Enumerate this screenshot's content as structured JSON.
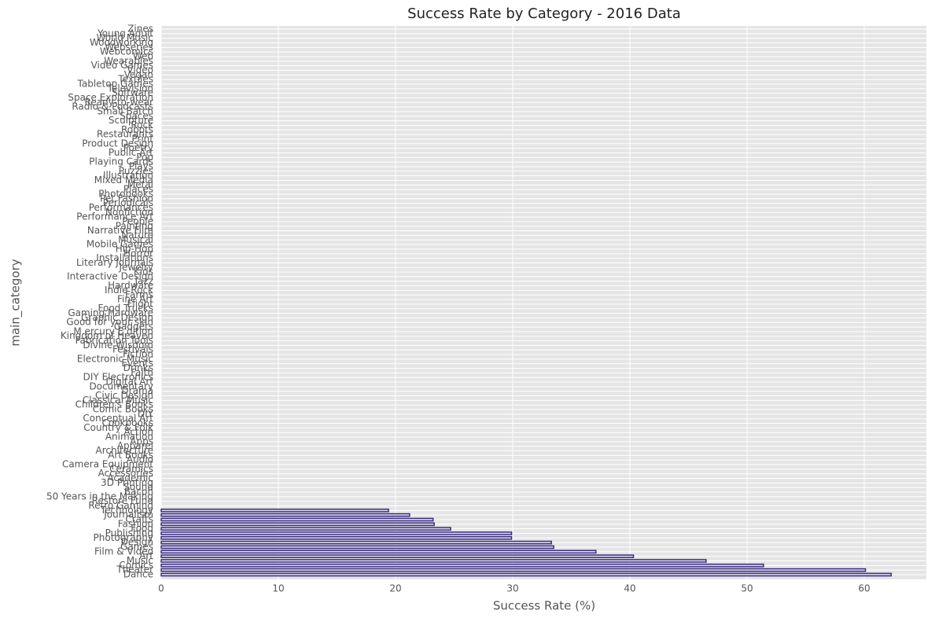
{
  "chart_data": {
    "type": "barh",
    "title": "Success Rate by Category - 2016 Data",
    "xlabel": "Success Rate (%)",
    "ylabel": "main_category",
    "categories": [
      "Dance",
      "Theater",
      "Comics",
      "Music",
      "Art",
      "Film & Video",
      "Games",
      "Design",
      "Photography",
      "Publishing",
      "Food",
      "Fashion",
      "Crafts",
      "Journalism",
      "Technology",
      "Retro Gaming",
      "Restore Fund",
      "50 Years in the Making",
      "Bacon",
      "Sound",
      "3D Printing",
      "Academic",
      "Accessories",
      "Ceramics",
      "Camera Equipment",
      "Audio",
      "Art Books",
      "Architecture",
      "Apparel",
      "Apps",
      "Animation",
      "Action",
      "Country & Folk",
      "Cookbooks",
      "Conceptual Art",
      "DIY",
      "Comic Books",
      "Children's Books",
      "Classical Music",
      "Civic Design",
      "Drama",
      "Documentary",
      "Digital Art",
      "DIY Electronics",
      "Faith",
      "Drinks",
      "Events",
      "Electronic Music",
      "Fiction",
      "Festivals",
      "Divine Wisdom",
      "Fabrication Tools",
      "Kingdom of Heaven",
      "M.ercury E.dition",
      "Gadgets",
      "Good for your skin",
      "Graphic Design",
      "Gaming Hardware",
      "Food Trucks",
      "Flight",
      "Fine Art",
      "Farms",
      "Indie Rock",
      "Hardware",
      "Jazz",
      "Interactive Design",
      "Kids",
      "Jewelry",
      "Literary Journals",
      "Installations",
      "Horror",
      "Hip-Hop",
      "Mobile Games",
      "Musical",
      "Nature",
      "Narrative Film",
      "Painting",
      "People",
      "Performance Art",
      "Nonfiction",
      "Performances",
      "Periodicals",
      "Pet Fashion",
      "Photobooks",
      "Places",
      "Metal",
      "Mixed Media",
      "Illustration",
      "Puzzles",
      "Plays",
      "Playing Cards",
      "Pop",
      "Public Art",
      "Poetry",
      "Product Design",
      "Print",
      "Restaurants",
      "Robots",
      "Rock",
      "Sculpture",
      "Spaces",
      "Small Batch",
      "Radio & Podcasts",
      "Ready-to-wear",
      "Space Exploration",
      "Software",
      "Television",
      "Tabletop Games",
      "Textiles",
      "Vegan",
      "Video",
      "Video Games",
      "Wearables",
      "Web",
      "Webcomics",
      "Webseries",
      "Woodworking",
      "World Music",
      "Young Adult",
      "Zines"
    ],
    "values": [
      62.3,
      60.1,
      51.4,
      46.5,
      40.3,
      37.1,
      33.5,
      33.3,
      29.9,
      29.9,
      24.7,
      23.3,
      23.2,
      21.2,
      19.4,
      0,
      0,
      0,
      0,
      0,
      0,
      0,
      0,
      0,
      0,
      0,
      0,
      0,
      0,
      0,
      0,
      0,
      0,
      0,
      0,
      0,
      0,
      0,
      0,
      0,
      0,
      0,
      0,
      0,
      0,
      0,
      0,
      0,
      0,
      0,
      0,
      0,
      0,
      0,
      0,
      0,
      0,
      0,
      0,
      0,
      0,
      0,
      0,
      0,
      0,
      0,
      0,
      0,
      0,
      0,
      0,
      0,
      0,
      0,
      0,
      0,
      0,
      0,
      0,
      0,
      0,
      0,
      0,
      0,
      0,
      0,
      0,
      0,
      0,
      0,
      0,
      0,
      0,
      0,
      0,
      0,
      0,
      0,
      0,
      0,
      0,
      0,
      0,
      0,
      0,
      0,
      0,
      0,
      0,
      0,
      0,
      0,
      0,
      0,
      0,
      0,
      0,
      0,
      0,
      0
    ],
    "color": "#3b2f80",
    "xlim": [
      0,
      65.3
    ],
    "xticks": [
      0,
      10,
      20,
      30,
      40,
      50,
      60
    ],
    "grid": true
  }
}
